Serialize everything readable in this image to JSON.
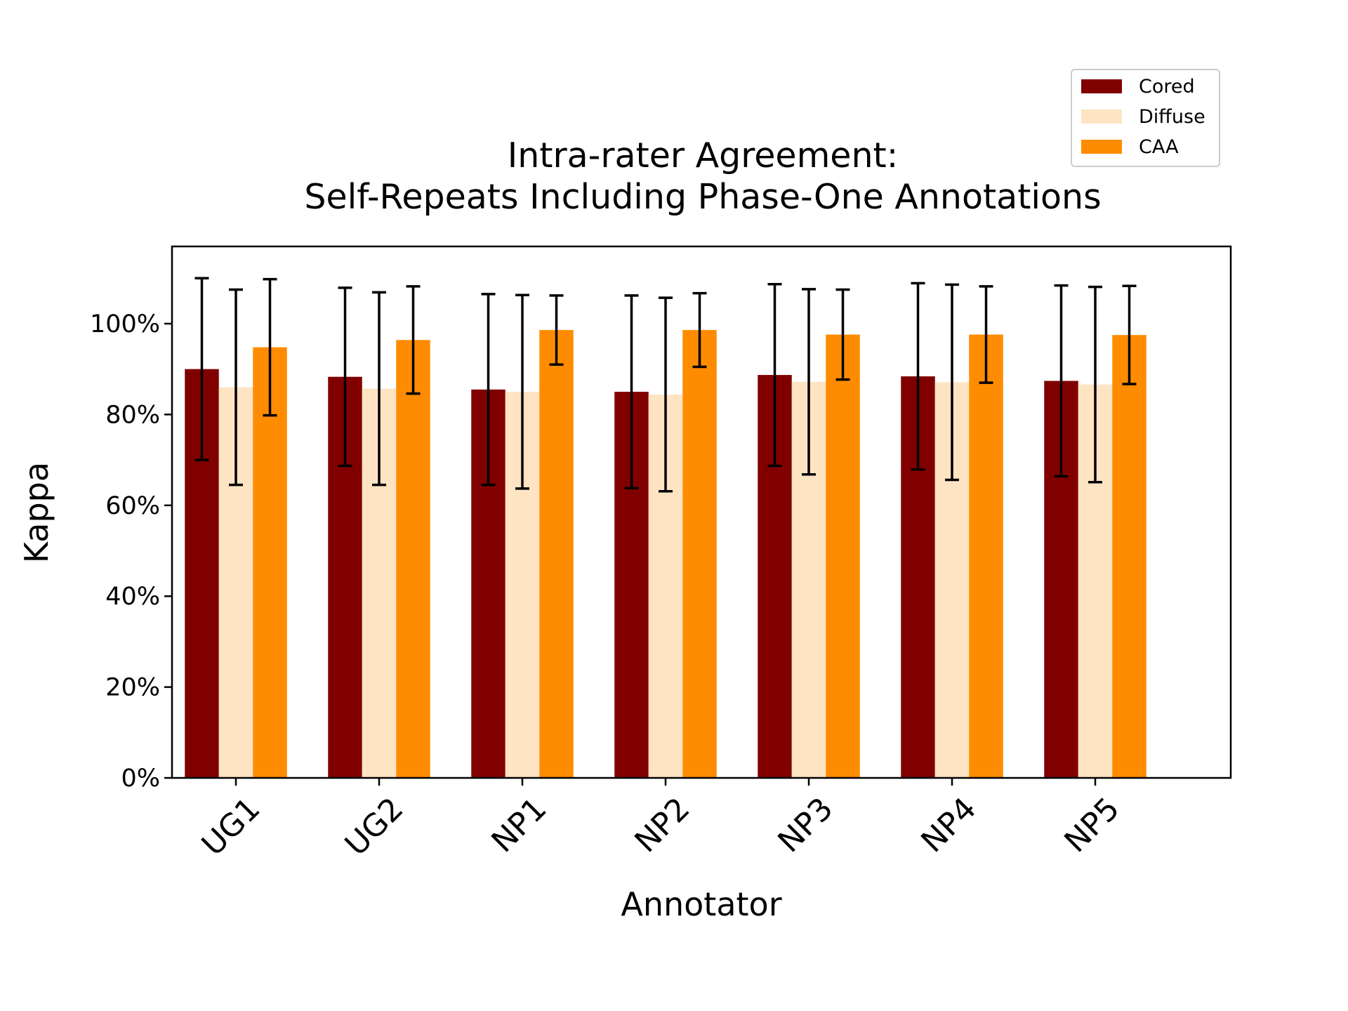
{
  "chart_data": {
    "type": "bar",
    "title": "Intra-rater Agreement:",
    "subtitle": "Self-Repeats Including Phase-One Annotations",
    "xlabel": "Annotator",
    "ylabel": "Kappa",
    "categories": [
      "UG1",
      "UG2",
      "NP1",
      "NP2",
      "NP3",
      "NP4",
      "NP5"
    ],
    "ylim": [
      0,
      1.17
    ],
    "yticks": [
      {
        "value": 0.0,
        "label": "0%"
      },
      {
        "value": 0.2,
        "label": "20%"
      },
      {
        "value": 0.4,
        "label": "40%"
      },
      {
        "value": 0.6,
        "label": "60%"
      },
      {
        "value": 0.8,
        "label": "80%"
      },
      {
        "value": 1.0,
        "label": "100%"
      }
    ],
    "grid": false,
    "legend_position": "top-right",
    "series": [
      {
        "name": "Cored",
        "color": "#800000",
        "values": [
          0.9,
          0.883,
          0.855,
          0.85,
          0.887,
          0.884,
          0.874
        ],
        "errors": [
          0.2,
          0.196,
          0.21,
          0.212,
          0.2,
          0.205,
          0.21
        ]
      },
      {
        "name": "Diffuse",
        "color": "#ffe4c4",
        "values": [
          0.86,
          0.857,
          0.85,
          0.844,
          0.872,
          0.871,
          0.866
        ],
        "errors": [
          0.215,
          0.212,
          0.213,
          0.213,
          0.204,
          0.215,
          0.215
        ]
      },
      {
        "name": "CAA",
        "color": "#ff8c00",
        "values": [
          0.948,
          0.964,
          0.986,
          0.986,
          0.976,
          0.976,
          0.975
        ],
        "errors": [
          0.15,
          0.118,
          0.076,
          0.081,
          0.099,
          0.106,
          0.108
        ]
      }
    ]
  }
}
